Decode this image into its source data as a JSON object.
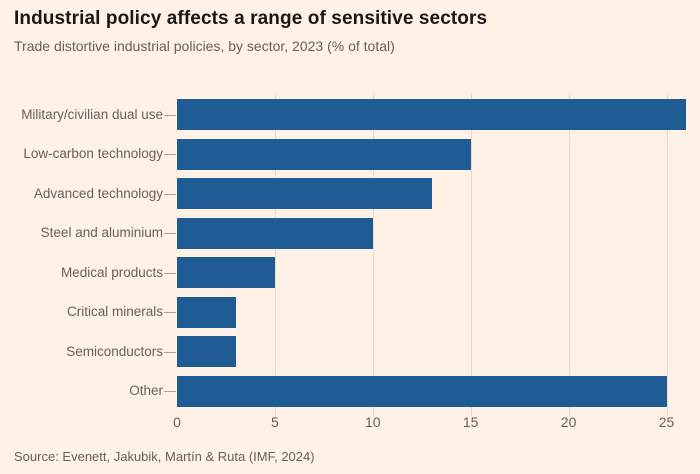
{
  "header": {
    "title": "Industrial policy affects a range of sensitive sectors",
    "subtitle": "Trade distortive industrial policies, by sector, 2023 (% of total)"
  },
  "chart_data": {
    "type": "bar",
    "orientation": "horizontal",
    "title": "Industrial policy affects a range of sensitive sectors",
    "subtitle": "Trade distortive industrial policies, by sector, 2023 (% of total)",
    "categories": [
      "Military/civilian dual use",
      "Low-carbon technology",
      "Advanced technology",
      "Steel and aluminium",
      "Medical products",
      "Critical minerals",
      "Semiconductors",
      "Other"
    ],
    "values": [
      26,
      15,
      13,
      10,
      5,
      3,
      3,
      25
    ],
    "unit": "% of total",
    "xlabel": "",
    "ylabel": "",
    "xlim": [
      0,
      26.2
    ],
    "xticks": [
      0,
      5,
      10,
      15,
      20,
      25
    ],
    "grid": true,
    "legend": false
  },
  "footer": {
    "source": "Source: Evenett, Jakubik, Martín & Ruta (IMF, 2024)"
  },
  "colors": {
    "background": "#FFF1E5",
    "bar": "#1F5C94",
    "title_text": "#1A1817",
    "secondary_text": "#66605C",
    "gridline": "#E8D9CB"
  }
}
